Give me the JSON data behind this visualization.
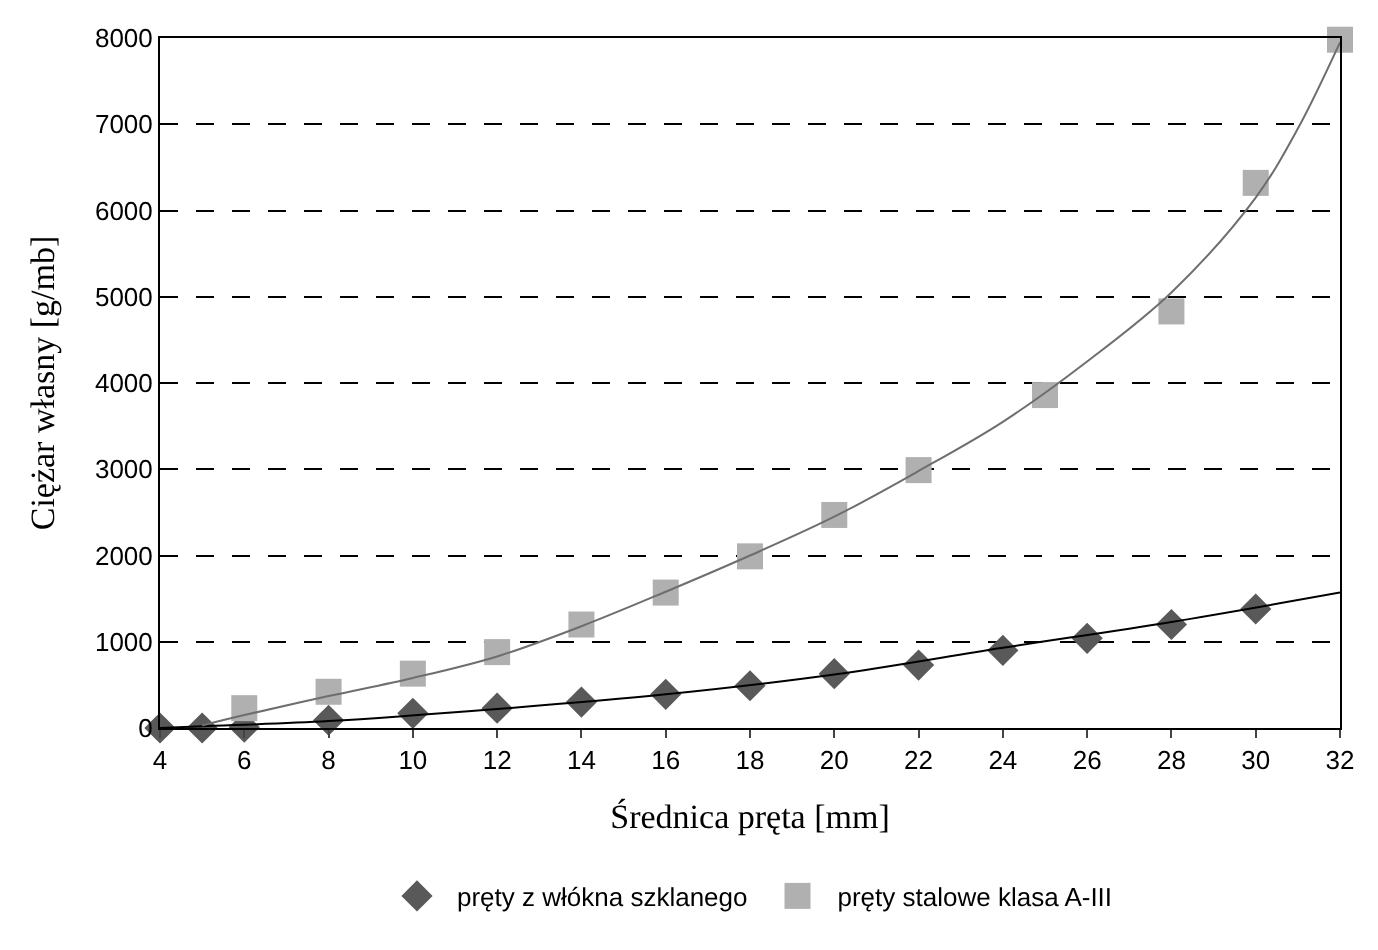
{
  "chart_data": {
    "type": "scatter",
    "xlabel": "Średnica pręta [mm]",
    "ylabel": "Ciężar własny [g/mb]",
    "xlim": [
      4,
      32
    ],
    "xticks": [
      4,
      6,
      8,
      10,
      12,
      14,
      16,
      18,
      20,
      22,
      24,
      26,
      28,
      30,
      32
    ],
    "ylim": [
      0,
      8000
    ],
    "yticks": [
      0,
      1000,
      2000,
      3000,
      4000,
      5000,
      6000,
      7000,
      8000
    ],
    "grid": "y",
    "legend": "bottom",
    "series": [
      {
        "name": "pręty z włókna szklanego",
        "color": "#595959",
        "marker": "diamond",
        "x": [
          4,
          5,
          6,
          8,
          10,
          12,
          14,
          16,
          18,
          20,
          22,
          24,
          26,
          28,
          30
        ],
        "values": [
          0,
          0,
          10,
          90,
          170,
          230,
          300,
          390,
          490,
          630,
          730,
          900,
          1040,
          1200,
          1380
        ]
      },
      {
        "name": "pręty stalowe klasa A-III",
        "color": "#b0b0b0",
        "marker": "square",
        "x": [
          6,
          8,
          10,
          12,
          14,
          16,
          18,
          20,
          22,
          25,
          28,
          30,
          32
        ],
        "values": [
          230,
          420,
          630,
          880,
          1200,
          1570,
          1990,
          2470,
          2990,
          3860,
          4830,
          6320,
          7980
        ]
      },
      {
        "type": "line",
        "color": "#000000",
        "marker": "none",
        "x": [
          4,
          5,
          8,
          12,
          16,
          20,
          24,
          28,
          32
        ],
        "values": [
          0,
          20,
          80,
          220,
          390,
          620,
          930,
          1230,
          1570
        ]
      },
      {
        "type": "line",
        "color": "#6e6e6e",
        "marker": "none",
        "x": [
          5,
          6,
          8,
          10,
          12,
          14,
          16,
          18,
          20,
          22,
          24,
          26,
          28,
          30,
          31,
          32
        ],
        "values": [
          30,
          150,
          370,
          580,
          830,
          1180,
          1580,
          2000,
          2450,
          2980,
          3550,
          4250,
          5050,
          6150,
          6950,
          7950
        ]
      }
    ]
  }
}
